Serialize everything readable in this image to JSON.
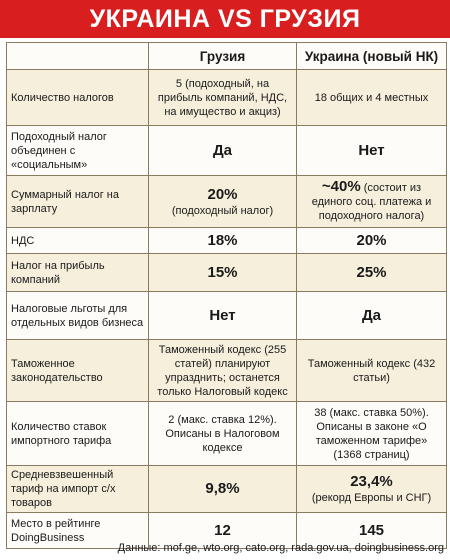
{
  "title": "УКРАИНА VS ГРУЗИЯ",
  "header": {
    "col1": "",
    "col2": "Грузия",
    "col3": "Украина (новый НК)"
  },
  "rows": [
    {
      "label": "Количество налогов",
      "georgia": "5 (подоходный, на прибыль компаний, НДС, на имущество и акциз)",
      "ukraine": "18 общих и 4 местных"
    },
    {
      "label": "Подоходный налог объединен с «социальным»",
      "georgia": "Да",
      "ukraine": "Нет"
    },
    {
      "label": "Суммарный налог на зарплату",
      "georgia_big": "20%",
      "georgia_note": "(подоходный налог)",
      "ukraine_big": "~40%",
      "ukraine_note": "(состоит из единого соц. платежа и подоходного налога)"
    },
    {
      "label": "НДС",
      "georgia": "18%",
      "ukraine": "20%"
    },
    {
      "label": "Налог на прибыль компаний",
      "georgia": "15%",
      "ukraine": "25%"
    },
    {
      "label": "Налоговые льготы для отдельных видов бизнеса",
      "georgia": "Нет",
      "ukraine": "Да"
    },
    {
      "label": "Таможенное законодательство",
      "georgia": "Таможенный кодекс (255 статей) планируют упразднить; останется только Налоговый кодекс",
      "ukraine": "Таможенный кодекс (432 статьи)"
    },
    {
      "label": "Количество ставок импортного тарифа",
      "georgia": "2 (макс. ставка 12%). Описаны в Налоговом кодексе",
      "ukraine": "38 (макс. ставка 50%). Описаны в законе «О таможенном тарифе» (1368 страниц)"
    },
    {
      "label": "Средневзвешенный тариф на импорт с/х товаров",
      "georgia": "9,8%",
      "ukraine_big": "23,4%",
      "ukraine_note": "(рекорд Европы и СНГ)"
    },
    {
      "label": "Место в рейтинге DoingBusiness",
      "georgia": "12",
      "ukraine": "145"
    }
  ],
  "footer": "Данные: mof.ge, wto.org, cato.org, rada.gov.ua, doingbusiness.org"
}
